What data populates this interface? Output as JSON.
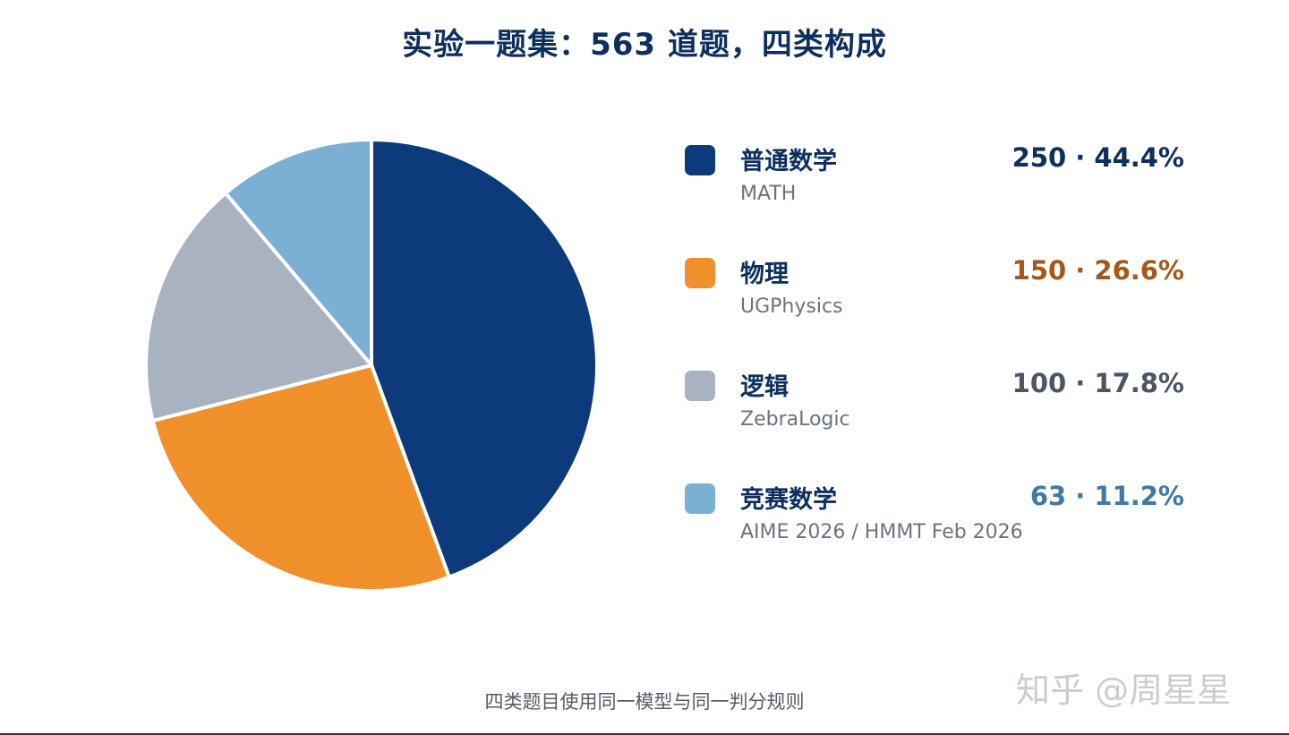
{
  "title": "实验一题集：563 道题，四类构成",
  "footer": "四类题目使用同一模型与同一判分规则",
  "watermark": "知乎 @周星星",
  "chart_data": {
    "type": "pie",
    "title": "实验一题集：563 道题，四类构成",
    "slices": [
      {
        "label": "普通数学",
        "sublabel": "MATH",
        "value": 250,
        "percent": "44.4%",
        "display": "250 · 44.4%",
        "color": "#0d3a7a",
        "value_color": "#0d2f5e"
      },
      {
        "label": "物理",
        "sublabel": "UGPhysics",
        "value": 150,
        "percent": "26.6%",
        "display": "150 · 26.6%",
        "color": "#f0902b",
        "value_color": "#a4581a"
      },
      {
        "label": "逻辑",
        "sublabel": "ZebraLogic",
        "value": 100,
        "percent": "17.8%",
        "display": "100 · 17.8%",
        "color": "#a9b2c1",
        "value_color": "#4b5563"
      },
      {
        "label": "竞赛数学",
        "sublabel": "AIME 2026 / HMMT Feb 2026",
        "value": 63,
        "percent": "11.2%",
        "display": "63 · 11.2%",
        "color": "#7bafd4",
        "value_color": "#3f7aa6"
      }
    ],
    "legend": "right"
  }
}
